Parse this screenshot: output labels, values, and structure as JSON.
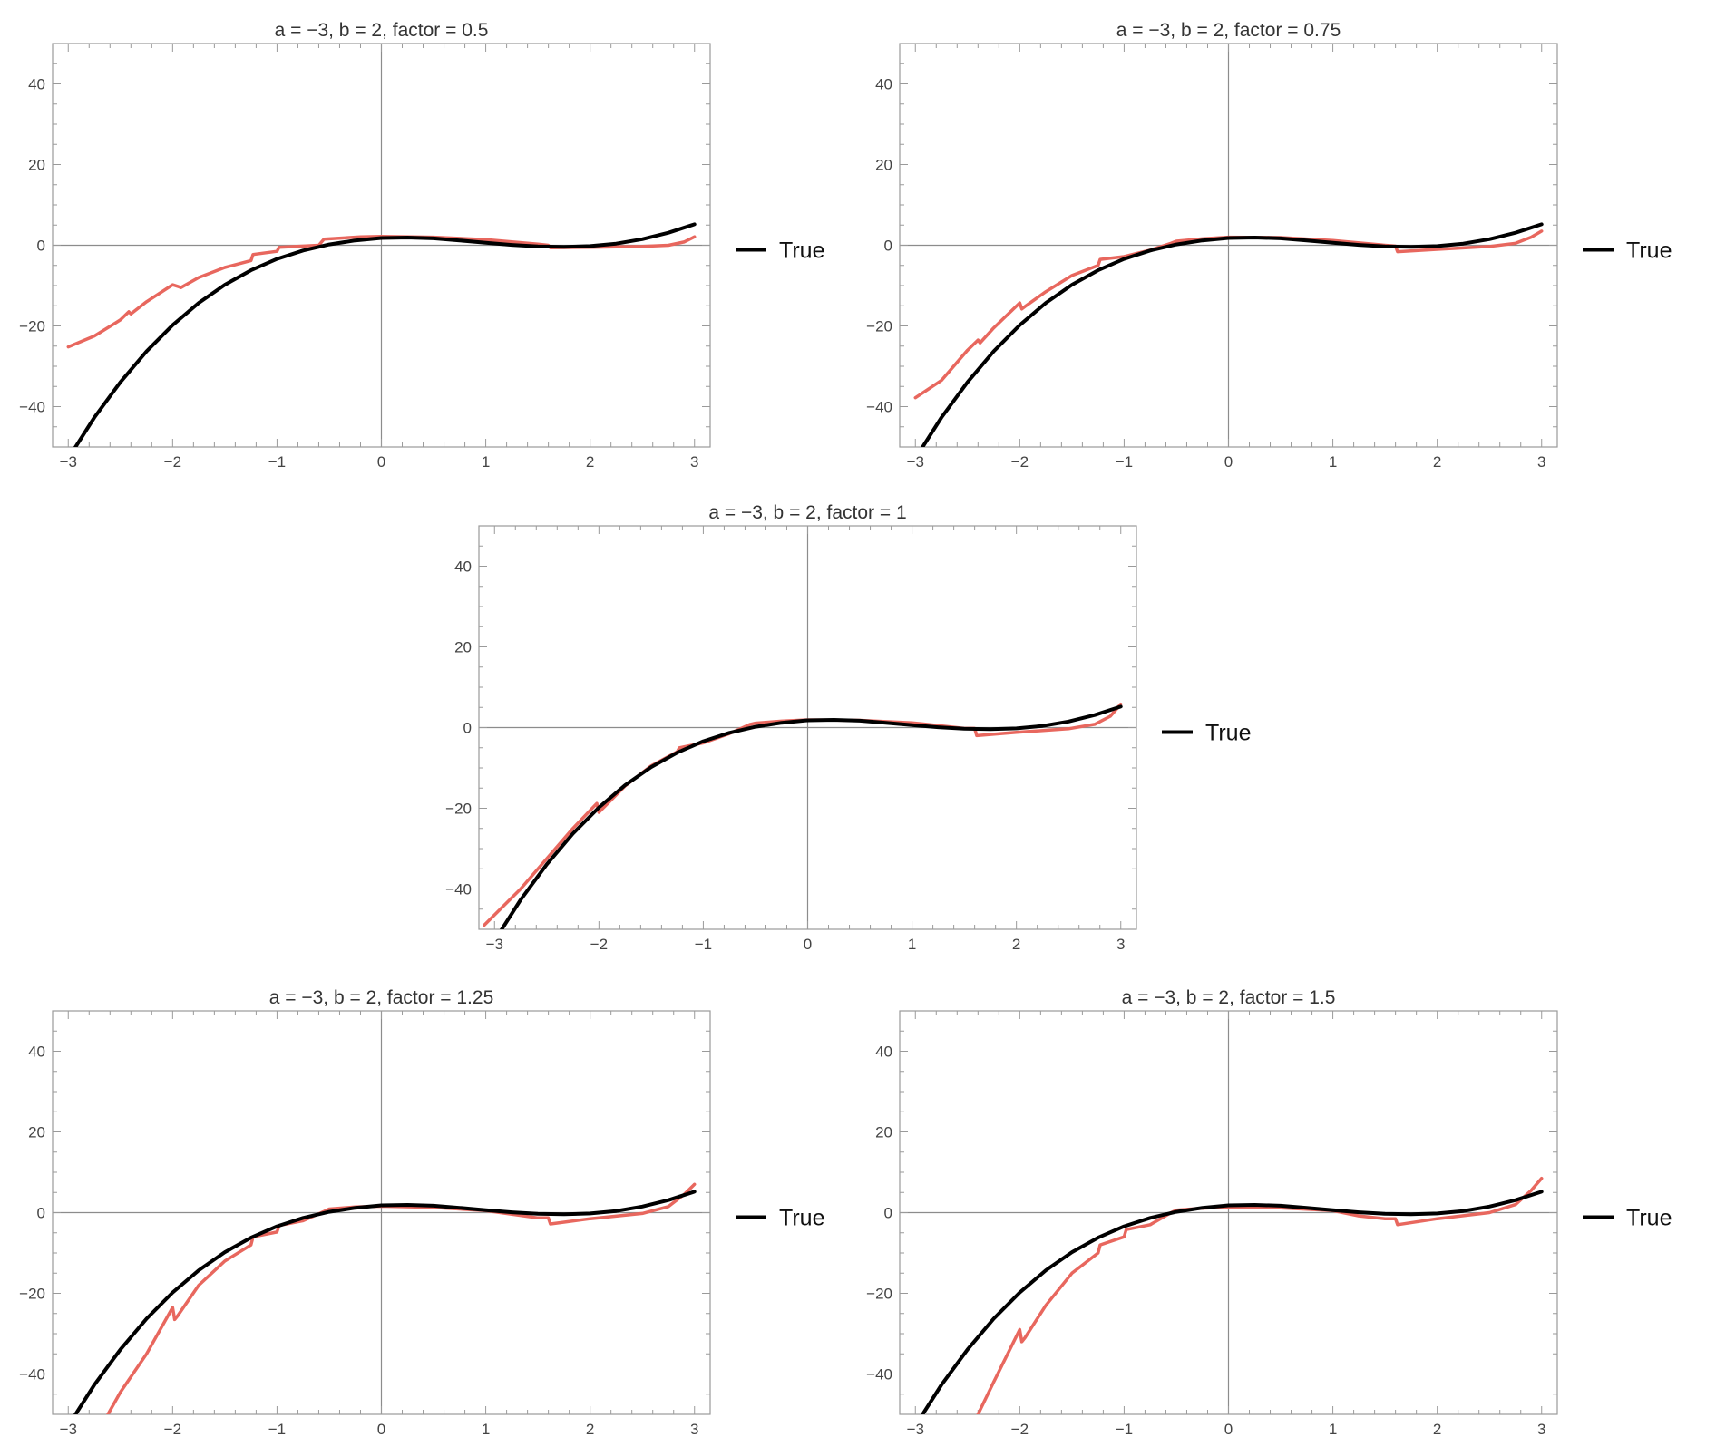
{
  "chart_data": [
    {
      "type": "line",
      "title": "a = −3, b = 2, factor = 0.5",
      "xlim": [
        -3.15,
        3.15
      ],
      "ylim": [
        -50,
        50
      ],
      "xticks": [
        "−3",
        "−2",
        "−1",
        "0",
        "1",
        "2",
        "3"
      ],
      "yticks": [
        "−40",
        "−20",
        "0",
        "20",
        "40"
      ],
      "legend": {
        "placement": "right",
        "entries": [
          {
            "label": "True",
            "color": "#000000"
          }
        ]
      },
      "series": [
        {
          "name": "True",
          "color": "#000000",
          "x": [
            -3,
            -2.75,
            -2.5,
            -2.25,
            -2,
            -1.75,
            -1.5,
            -1.25,
            -1,
            -0.75,
            -0.5,
            -0.25,
            0,
            0.25,
            0.5,
            0.75,
            1,
            1.25,
            1.5,
            1.75,
            2,
            2.25,
            2.5,
            2.75,
            3
          ],
          "y": [
            -52.8,
            -42.7,
            -33.9,
            -26.3,
            -19.8,
            -14.3,
            -9.8,
            -6.2,
            -3.4,
            -1.3,
            0.2,
            1.2,
            1.8,
            1.9,
            1.7,
            1.2,
            0.6,
            0.1,
            -0.3,
            -0.4,
            -0.2,
            0.4,
            1.5,
            3.1,
            5.2
          ]
        },
        {
          "color": "#e8675e",
          "x": [
            -3,
            -2.75,
            -2.5,
            -2.42,
            -2.4,
            -2.25,
            -2,
            -1.95,
            -1.92,
            -1.75,
            -1.5,
            -1.25,
            -1.23,
            -1,
            -0.98,
            -0.6,
            -0.55,
            -0.2,
            0,
            0.5,
            1,
            1.5,
            1.6,
            1.62,
            2,
            2.5,
            2.75,
            2.9,
            3
          ],
          "y": [
            -25.2,
            -22.5,
            -18.5,
            -16.5,
            -17.0,
            -14.0,
            -9.8,
            -10.2,
            -10.5,
            -8.0,
            -5.5,
            -3.8,
            -2.3,
            -1.5,
            -0.5,
            0.0,
            1.5,
            2.1,
            2.2,
            2.0,
            1.4,
            0.3,
            0.0,
            -0.6,
            -0.5,
            -0.3,
            0.0,
            0.8,
            2.1
          ]
        }
      ]
    },
    {
      "type": "line",
      "title": "a = −3, b = 2, factor = 0.75",
      "xlim": [
        -3.15,
        3.15
      ],
      "ylim": [
        -50,
        50
      ],
      "xticks": [
        "−3",
        "−2",
        "−1",
        "0",
        "1",
        "2",
        "3"
      ],
      "yticks": [
        "−40",
        "−20",
        "0",
        "20",
        "40"
      ],
      "legend": {
        "placement": "right",
        "entries": [
          {
            "label": "True",
            "color": "#000000"
          }
        ]
      },
      "series": [
        {
          "name": "True",
          "color": "#000000",
          "x": [
            -3,
            -2.75,
            -2.5,
            -2.25,
            -2,
            -1.75,
            -1.5,
            -1.25,
            -1,
            -0.75,
            -0.5,
            -0.25,
            0,
            0.25,
            0.5,
            0.75,
            1,
            1.25,
            1.5,
            1.75,
            2,
            2.25,
            2.5,
            2.75,
            3
          ],
          "y": [
            -52.8,
            -42.7,
            -33.9,
            -26.3,
            -19.8,
            -14.3,
            -9.8,
            -6.2,
            -3.4,
            -1.3,
            0.2,
            1.2,
            1.8,
            1.9,
            1.7,
            1.2,
            0.6,
            0.1,
            -0.3,
            -0.4,
            -0.2,
            0.4,
            1.5,
            3.1,
            5.2
          ]
        },
        {
          "color": "#e8675e",
          "x": [
            -3,
            -2.75,
            -2.5,
            -2.4,
            -2.38,
            -2.25,
            -2,
            -1.98,
            -1.95,
            -1.75,
            -1.5,
            -1.25,
            -1.23,
            -1,
            -0.75,
            -0.55,
            -0.5,
            -0.25,
            0,
            0.5,
            1,
            1.5,
            1.6,
            1.62,
            2,
            2.5,
            2.75,
            2.9,
            3
          ],
          "y": [
            -37.8,
            -33.5,
            -26.0,
            -23.5,
            -24.2,
            -20.5,
            -14.3,
            -15.8,
            -15.2,
            -11.5,
            -7.5,
            -5.0,
            -3.5,
            -2.8,
            -1.2,
            0.5,
            1.0,
            1.6,
            2.0,
            1.9,
            1.2,
            0.0,
            -0.2,
            -1.6,
            -1.0,
            -0.3,
            0.5,
            2.0,
            3.5
          ]
        }
      ]
    },
    {
      "type": "line",
      "title": "a = −3, b = 2, factor = 1",
      "xlim": [
        -3.15,
        3.15
      ],
      "ylim": [
        -50,
        50
      ],
      "xticks": [
        "−3",
        "−2",
        "−1",
        "0",
        "1",
        "2",
        "3"
      ],
      "yticks": [
        "−40",
        "−20",
        "0",
        "20",
        "40"
      ],
      "legend": {
        "placement": "right",
        "entries": [
          {
            "label": "True",
            "color": "#000000"
          }
        ]
      },
      "series": [
        {
          "name": "True",
          "color": "#000000",
          "x": [
            -3,
            -2.75,
            -2.5,
            -2.25,
            -2,
            -1.75,
            -1.5,
            -1.25,
            -1,
            -0.75,
            -0.5,
            -0.25,
            0,
            0.25,
            0.5,
            0.75,
            1,
            1.25,
            1.5,
            1.75,
            2,
            2.25,
            2.5,
            2.75,
            3
          ],
          "y": [
            -52.8,
            -42.7,
            -33.9,
            -26.3,
            -19.8,
            -14.3,
            -9.8,
            -6.2,
            -3.4,
            -1.3,
            0.2,
            1.2,
            1.8,
            1.9,
            1.7,
            1.2,
            0.6,
            0.1,
            -0.3,
            -0.4,
            -0.2,
            0.4,
            1.5,
            3.1,
            5.2
          ]
        },
        {
          "color": "#e8675e",
          "x": [
            -3.1,
            -2.75,
            -2.5,
            -2.25,
            -2.02,
            -2,
            -1.98,
            -1.75,
            -1.5,
            -1.25,
            -1.23,
            -1,
            -0.75,
            -0.55,
            -0.5,
            -0.25,
            0,
            0.5,
            1,
            1.5,
            1.6,
            1.62,
            2,
            2.5,
            2.75,
            2.9,
            3
          ],
          "y": [
            -49.0,
            -40.0,
            -32.5,
            -25.0,
            -18.8,
            -21.0,
            -20.5,
            -14.5,
            -9.5,
            -6.0,
            -5.0,
            -3.8,
            -1.5,
            0.8,
            1.1,
            1.6,
            1.9,
            1.8,
            1.2,
            -0.2,
            -0.2,
            -2.0,
            -1.2,
            -0.3,
            0.8,
            2.8,
            5.8
          ]
        }
      ]
    },
    {
      "type": "line",
      "title": "a = −3, b = 2, factor = 1.25",
      "xlim": [
        -3.15,
        3.15
      ],
      "ylim": [
        -50,
        50
      ],
      "xticks": [
        "−3",
        "−2",
        "−1",
        "0",
        "1",
        "2",
        "3"
      ],
      "yticks": [
        "−40",
        "−20",
        "0",
        "20",
        "40"
      ],
      "legend": {
        "placement": "right",
        "entries": [
          {
            "label": "True",
            "color": "#000000"
          }
        ]
      },
      "series": [
        {
          "name": "True",
          "color": "#000000",
          "x": [
            -3,
            -2.75,
            -2.5,
            -2.25,
            -2,
            -1.75,
            -1.5,
            -1.25,
            -1,
            -0.75,
            -0.5,
            -0.25,
            0,
            0.25,
            0.5,
            0.75,
            1,
            1.25,
            1.5,
            1.75,
            2,
            2.25,
            2.5,
            2.75,
            3
          ],
          "y": [
            -52.8,
            -42.7,
            -33.9,
            -26.3,
            -19.8,
            -14.3,
            -9.8,
            -6.2,
            -3.4,
            -1.3,
            0.2,
            1.2,
            1.8,
            1.9,
            1.7,
            1.2,
            0.6,
            0.1,
            -0.3,
            -0.4,
            -0.2,
            0.4,
            1.5,
            3.1,
            5.2
          ]
        },
        {
          "color": "#e8675e",
          "x": [
            -2.62,
            -2.5,
            -2.25,
            -2,
            -1.98,
            -1.95,
            -1.75,
            -1.5,
            -1.25,
            -1.23,
            -1,
            -0.98,
            -0.75,
            -0.55,
            -0.5,
            -0.25,
            0,
            0.5,
            1,
            1.5,
            1.6,
            1.62,
            2,
            2.5,
            2.75,
            2.9,
            3
          ],
          "y": [
            -50.0,
            -44.5,
            -35.0,
            -23.5,
            -26.5,
            -25.5,
            -18.0,
            -12.0,
            -8.0,
            -6.0,
            -4.8,
            -3.2,
            -2.0,
            0.3,
            0.9,
            1.4,
            1.6,
            1.3,
            0.5,
            -1.3,
            -1.3,
            -2.8,
            -1.5,
            -0.2,
            1.5,
            4.5,
            7.0
          ]
        }
      ]
    },
    {
      "type": "line",
      "title": "a = −3, b = 2, factor = 1.5",
      "xlim": [
        -3.15,
        3.15
      ],
      "ylim": [
        -50,
        50
      ],
      "xticks": [
        "−3",
        "−2",
        "−1",
        "0",
        "1",
        "2",
        "3"
      ],
      "yticks": [
        "−40",
        "−20",
        "0",
        "20",
        "40"
      ],
      "legend": {
        "placement": "right",
        "entries": [
          {
            "label": "True",
            "color": "#000000"
          }
        ]
      },
      "series": [
        {
          "name": "True",
          "color": "#000000",
          "x": [
            -3,
            -2.75,
            -2.5,
            -2.25,
            -2,
            -1.75,
            -1.5,
            -1.25,
            -1,
            -0.75,
            -0.5,
            -0.25,
            0,
            0.25,
            0.5,
            0.75,
            1,
            1.25,
            1.5,
            1.75,
            2,
            2.25,
            2.5,
            2.75,
            3
          ],
          "y": [
            -52.8,
            -42.7,
            -33.9,
            -26.3,
            -19.8,
            -14.3,
            -9.8,
            -6.2,
            -3.4,
            -1.3,
            0.2,
            1.2,
            1.8,
            1.9,
            1.7,
            1.2,
            0.6,
            0.1,
            -0.3,
            -0.4,
            -0.2,
            0.4,
            1.5,
            3.1,
            5.2
          ]
        },
        {
          "color": "#e8675e",
          "x": [
            -2.4,
            -2.25,
            -2,
            -1.98,
            -1.95,
            -1.75,
            -1.5,
            -1.25,
            -1.23,
            -1,
            -0.98,
            -0.75,
            -0.55,
            -0.5,
            -0.25,
            0,
            0.5,
            1,
            1.25,
            1.5,
            1.6,
            1.62,
            2,
            2.5,
            2.75,
            2.9,
            3
          ],
          "y": [
            -50.0,
            -42.0,
            -29.0,
            -32.0,
            -31.0,
            -23.0,
            -15.0,
            -10.0,
            -8.0,
            -6.0,
            -4.2,
            -3.0,
            0.0,
            0.6,
            1.1,
            1.4,
            1.2,
            0.5,
            -0.8,
            -1.5,
            -1.5,
            -3.0,
            -1.5,
            0.0,
            2.0,
            5.5,
            8.5
          ]
        }
      ]
    }
  ]
}
